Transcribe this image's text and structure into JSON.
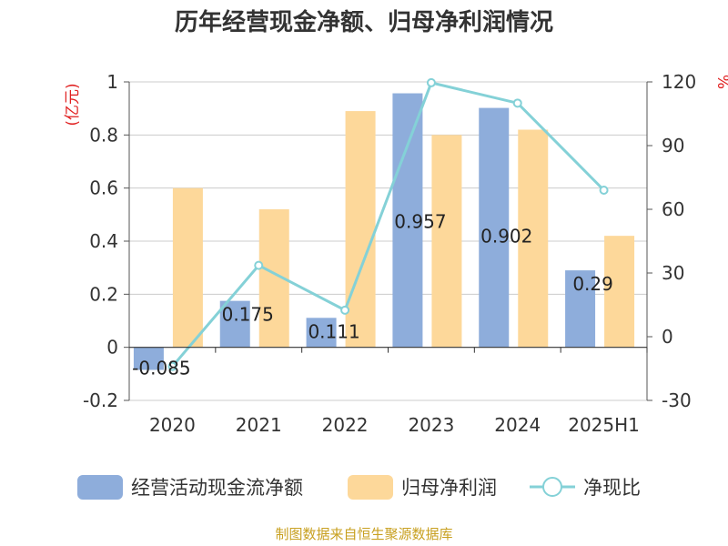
{
  "chart_data": {
    "type": "bar",
    "title": "历年经营现金净额、归母净利润情况",
    "categories": [
      "2020",
      "2021",
      "2022",
      "2023",
      "2024",
      "2025H1"
    ],
    "left_axis": {
      "unit": "(亿元)",
      "ylim": [
        -0.2,
        1
      ],
      "ticks": [
        "1",
        "0.8",
        "0.6",
        "0.4",
        "0.2",
        "0",
        "-0.2"
      ]
    },
    "right_axis": {
      "unit": "%",
      "ylim": [
        -30,
        120
      ],
      "ticks": [
        "120",
        "90",
        "60",
        "30",
        "0",
        "-30"
      ]
    },
    "series": [
      {
        "name": "经营活动现金流净额",
        "type": "bar",
        "axis": "left",
        "color": "#8eaddb",
        "values": [
          -0.085,
          0.175,
          0.111,
          0.957,
          0.902,
          0.29
        ],
        "labels": [
          "-0.085",
          "0.175",
          "0.111",
          "0.957",
          "0.902",
          "0.29"
        ]
      },
      {
        "name": "归母净利润",
        "type": "bar",
        "axis": "left",
        "color": "#fdd89a",
        "values": [
          0.6,
          0.52,
          0.89,
          0.8,
          0.82,
          0.42
        ]
      },
      {
        "name": "净现比",
        "type": "line",
        "axis": "right",
        "color": "#84d1d7",
        "values": [
          -14,
          33.6,
          12.5,
          119.6,
          110,
          69
        ]
      }
    ],
    "grid": true,
    "legend_position": "bottom"
  },
  "footer": {
    "source": "制图数据来自恒生聚源数据库"
  },
  "colors": {
    "title": "#333333",
    "unit": "#e02020",
    "axis_text": "#333333",
    "grid": "#cccccc",
    "source": "#c8a020"
  }
}
